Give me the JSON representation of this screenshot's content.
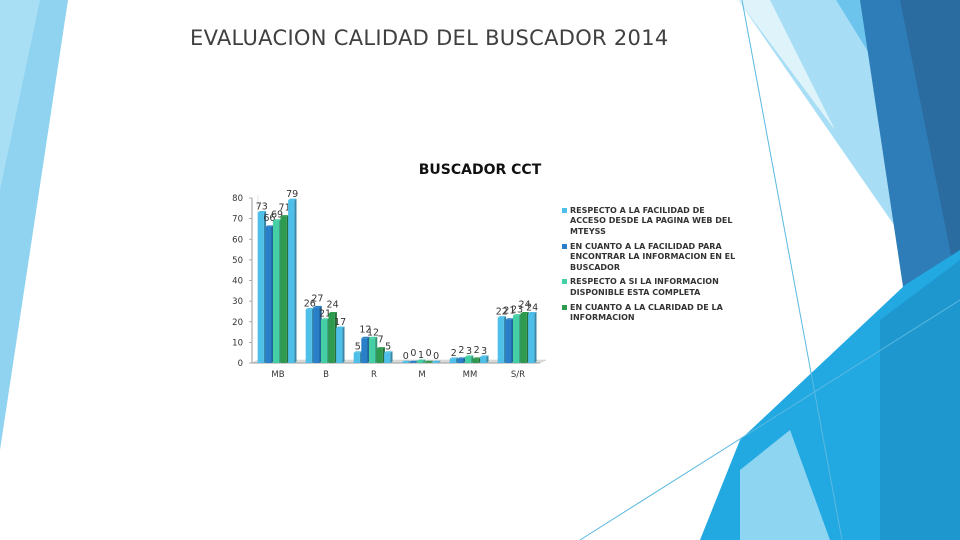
{
  "slide": {
    "title": "EVALUACION CALIDAD DEL BUSCADOR 2014"
  },
  "colors": {
    "accent_light": "#8fd3f0",
    "accent_mid": "#22a7e0",
    "accent_dark": "#2b6ca3",
    "series": [
      "#4dbfe8",
      "#2a7fc9",
      "#44cfa4",
      "#2e9a4e"
    ]
  },
  "chart_data": {
    "type": "bar",
    "title": "BUSCADOR CCT",
    "categories": [
      "MB",
      "B",
      "R",
      "M",
      "MM",
      "S/R"
    ],
    "ylim": [
      0,
      80
    ],
    "yticks": [
      0,
      10,
      20,
      30,
      40,
      50,
      60,
      70,
      80
    ],
    "grid": false,
    "legend": "right",
    "series": [
      {
        "name": "RESPECTO A LA FACILIDAD DE ACCESO DESDE LA PAGINA WEB DEL MTEYSS",
        "values": [
          73,
          26,
          5,
          0,
          2,
          22
        ]
      },
      {
        "name": "EN CUANTO A LA FACILIDAD PARA ENCONTRAR LA INFORMACION EN EL BUSCADOR",
        "values": [
          66,
          27,
          12,
          0,
          2,
          21
        ]
      },
      {
        "name": "RESPECTO A SI LA INFORMACION DISPONIBLE ESTA COMPLETA",
        "values": [
          69,
          21,
          12,
          1,
          3,
          23
        ]
      },
      {
        "name": "EN CUANTO A LA CLARIDAD DE LA INFORMACION",
        "values": [
          71,
          24,
          7,
          0,
          2,
          24
        ]
      },
      {
        "name": "",
        "values": [
          79,
          17,
          5,
          0,
          3,
          24
        ]
      }
    ]
  }
}
